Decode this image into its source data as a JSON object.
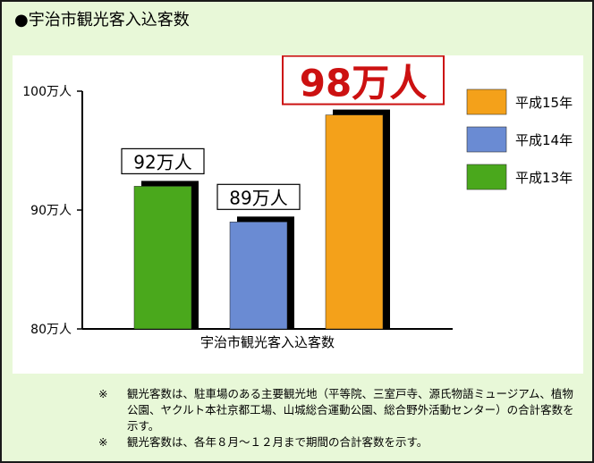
{
  "title": "●宇治市観光客入込客数",
  "chart_data": {
    "type": "bar",
    "title": "宇治市観光客入込客数",
    "xlabel": "宇治市観光客入込客数",
    "ylabel": "",
    "ylim": [
      80,
      100
    ],
    "yticks": [
      {
        "value": 100,
        "label": "100万人"
      },
      {
        "value": 90,
        "label": "90万人"
      },
      {
        "value": 80,
        "label": "80万人"
      }
    ],
    "grid": false,
    "legend_position": "right",
    "series": [
      {
        "name": "平成13年",
        "value": 92,
        "label": "92万人",
        "color": "#4aa81c",
        "emphasis": false
      },
      {
        "name": "平成14年",
        "value": 89,
        "label": "89万人",
        "color": "#6a8bd3",
        "emphasis": false
      },
      {
        "name": "平成15年",
        "value": 98,
        "label": "98万人",
        "color": "#f4a11a",
        "emphasis": true
      }
    ],
    "legend": [
      {
        "name": "平成15年",
        "color": "#f4a11a"
      },
      {
        "name": "平成14年",
        "color": "#6a8bd3"
      },
      {
        "name": "平成13年",
        "color": "#4aa81c"
      }
    ],
    "emphasis_color": "#cc1111"
  },
  "notes": [
    {
      "mark": "※",
      "text": "観光客数は、駐車場のある主要観光地（平等院、三室戸寺、源氏物語ミュージアム、植物公園、ヤクルト本社京都工場、山城総合運動公園、総合野外活動センター）の合計客数を示す。"
    },
    {
      "mark": "※",
      "text": "観光客数は、各年８月～１２月まで期間の合計客数を示す。"
    }
  ]
}
